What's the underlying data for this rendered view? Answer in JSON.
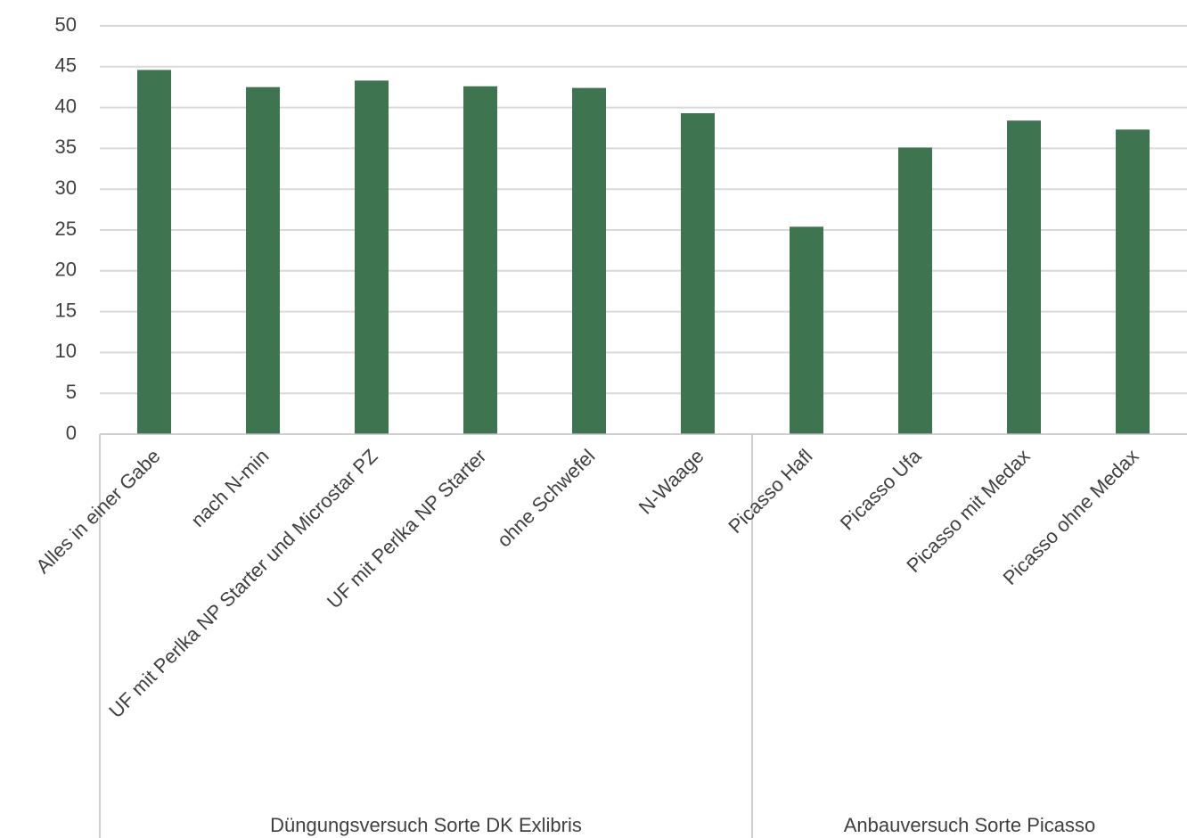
{
  "chart_data": {
    "type": "bar",
    "title": "",
    "xlabel": "",
    "ylabel": "",
    "ylim": [
      0,
      50
    ],
    "yticks": [
      0,
      5,
      10,
      15,
      20,
      25,
      30,
      35,
      40,
      45,
      50
    ],
    "grid": true,
    "legend": "none",
    "color": "#3e7450",
    "categories": [
      "Alles in einer Gabe",
      "nach N-min",
      "UF mit Perlka NP Starter und Microstar PZ",
      "UF mit Perlka NP Starter",
      "ohne Schwefel",
      "N-Waage",
      "Picasso Hafl",
      "Picasso Ufa",
      "Picasso mit Medax",
      "Picasso ohne Medax"
    ],
    "values": [
      44.6,
      42.5,
      43.3,
      42.6,
      42.4,
      39.3,
      25.4,
      35.1,
      38.4,
      37.3
    ],
    "groups": [
      {
        "label": "Düngungsversuch Sorte DK Exlibris",
        "count": 6
      },
      {
        "label": "Anbauversuch Sorte Picasso",
        "count": 4
      }
    ]
  }
}
